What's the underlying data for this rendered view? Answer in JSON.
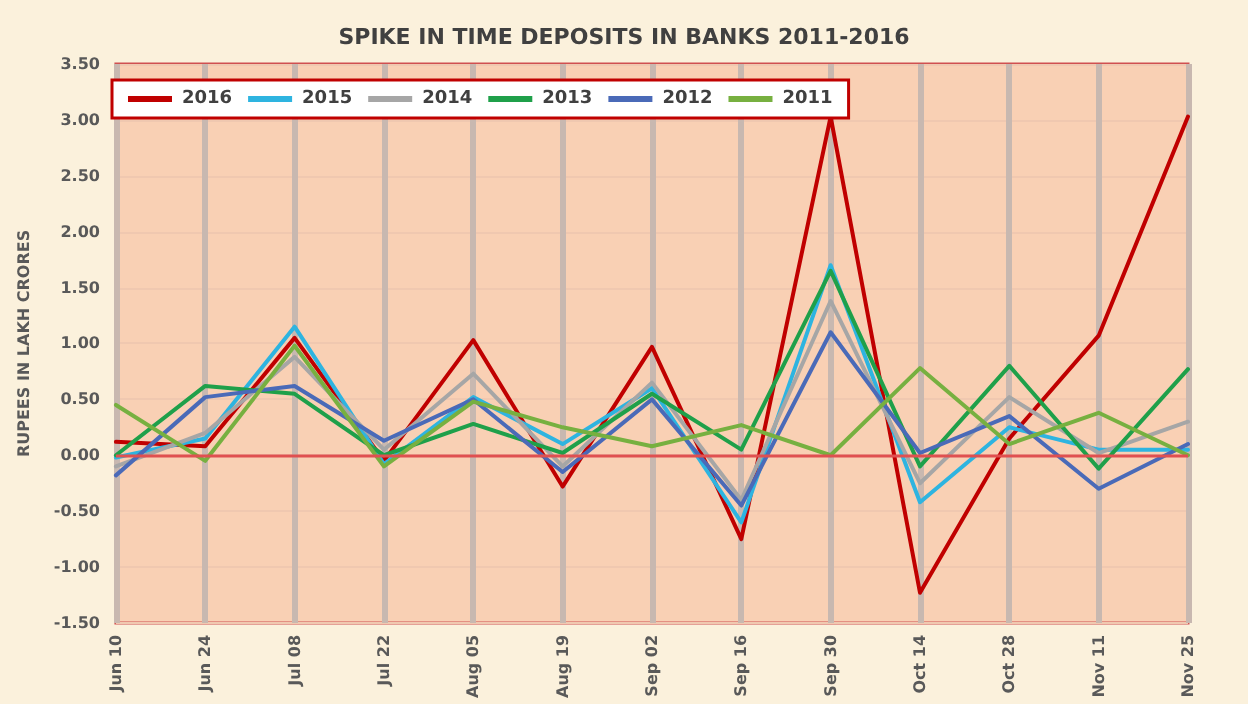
{
  "chart_data": {
    "type": "line",
    "title": "SPIKE IN TIME DEPOSITS IN BANKS 2011-2016",
    "ylabel": "RUPEES IN LAKH CRORES",
    "categories": [
      "Jun 10",
      "Jun 24",
      "Jul 08",
      "Jul 22",
      "Aug 05",
      "Aug 19",
      "Sep 02",
      "Sep 16",
      "Sep 30",
      "Oct 14",
      "Oct 28",
      "Nov 11",
      "Nov 25"
    ],
    "series": [
      {
        "name": "2016",
        "color": "#c00000",
        "values": [
          0.12,
          0.08,
          1.05,
          -0.05,
          1.03,
          -0.28,
          0.97,
          -0.75,
          3.03,
          -1.23,
          0.15,
          1.07,
          3.03
        ]
      },
      {
        "name": "2015",
        "color": "#2eb4e0",
        "values": [
          -0.02,
          0.15,
          1.15,
          -0.08,
          0.52,
          0.1,
          0.6,
          -0.6,
          1.7,
          -0.42,
          0.25,
          0.05,
          0.05
        ]
      },
      {
        "name": "2014",
        "color": "#a6a6a6",
        "values": [
          -0.1,
          0.2,
          0.88,
          0.05,
          0.73,
          -0.1,
          0.65,
          -0.4,
          1.38,
          -0.25,
          0.52,
          0.02,
          0.3
        ]
      },
      {
        "name": "2013",
        "color": "#1fa04a",
        "values": [
          0.0,
          0.62,
          0.55,
          0.0,
          0.28,
          0.02,
          0.55,
          0.05,
          1.65,
          -0.1,
          0.8,
          -0.12,
          0.77
        ]
      },
      {
        "name": "2012",
        "color": "#4a6ab8",
        "values": [
          -0.18,
          0.52,
          0.62,
          0.13,
          0.5,
          -0.15,
          0.5,
          -0.45,
          1.1,
          0.02,
          0.35,
          -0.3,
          0.1
        ]
      },
      {
        "name": "2011",
        "color": "#77b040",
        "values": [
          0.45,
          -0.05,
          0.98,
          -0.1,
          0.48,
          0.25,
          0.08,
          0.27,
          0.0,
          0.78,
          0.1,
          0.38,
          0.0
        ]
      }
    ],
    "ylim": [
      -1.5,
      3.5
    ],
    "yticks": [
      {
        "value": -1.5,
        "label": "-1.50"
      },
      {
        "value": -1,
        "label": "-1.00"
      },
      {
        "value": -0.5,
        "label": "-0.50"
      },
      {
        "value": 0,
        "label": "0.00"
      },
      {
        "value": 0.5,
        "label": "0.50"
      },
      {
        "value": 1,
        "label": "1.00"
      },
      {
        "value": 1.5,
        "label": "1.50"
      },
      {
        "value": 2,
        "label": "2.00"
      },
      {
        "value": 2.5,
        "label": "2.50"
      },
      {
        "value": 3,
        "label": "3.00"
      },
      {
        "value": 3.5,
        "label": "3.50"
      }
    ],
    "ref_lines": [
      {
        "axis": "y",
        "value": 0,
        "color": "#e05050"
      }
    ],
    "grid": true,
    "legend": "top left",
    "marker": "none",
    "line_style": "solid"
  }
}
